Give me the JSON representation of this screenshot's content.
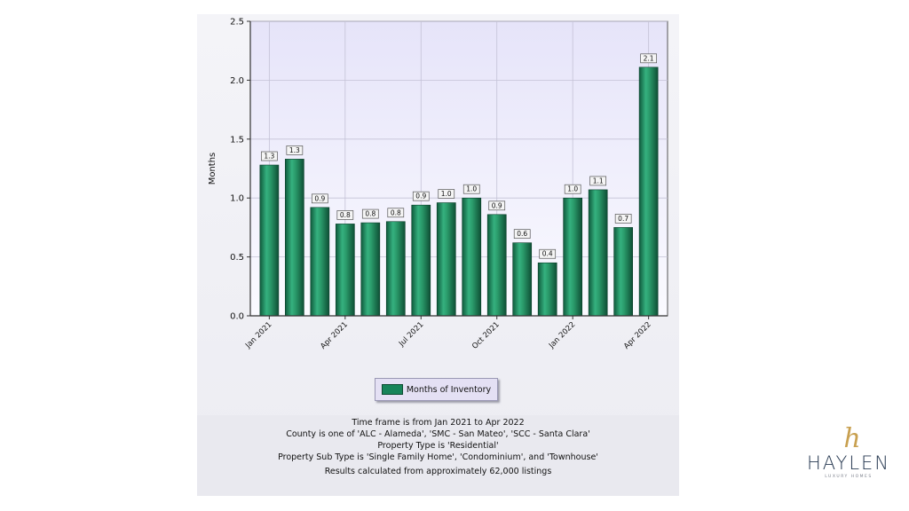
{
  "chart_data": {
    "type": "bar",
    "ylabel": "Months",
    "ylim": [
      0,
      2.5
    ],
    "yticks": [
      "0.0",
      "0.5",
      "1.0",
      "1.5",
      "2.0",
      "2.5"
    ],
    "grid": true,
    "x_tick_labels": [
      "Jan 2021",
      "Apr 2021",
      "Jul 2021",
      "Oct 2021",
      "Jan 2022",
      "Apr 2022"
    ],
    "legend_position": "bottom",
    "categories": [
      "Jan 2021",
      "Feb 2021",
      "Mar 2021",
      "Apr 2021",
      "May 2021",
      "Jun 2021",
      "Jul 2021",
      "Aug 2021",
      "Sep 2021",
      "Oct 2021",
      "Nov 2021",
      "Dec 2021",
      "Jan 2022",
      "Feb 2022",
      "Mar 2022",
      "Apr 2022"
    ],
    "series": [
      {
        "name": "Months of Inventory",
        "color": "#17845a",
        "values": [
          1.28,
          1.33,
          0.92,
          0.78,
          0.79,
          0.8,
          0.94,
          0.96,
          1.0,
          0.86,
          0.62,
          0.45,
          1.0,
          1.07,
          0.75,
          2.11
        ],
        "labels": [
          "1.3",
          "1.3",
          "0.9",
          "0.8",
          "0.8",
          "0.8",
          "0.9",
          "1.0",
          "1.0",
          "0.9",
          "0.6",
          "0.4",
          "1.0",
          "1.1",
          "0.7",
          "2.1"
        ]
      }
    ]
  },
  "notes": {
    "line1": "Time frame is from Jan 2021 to Apr 2022",
    "line2": "County is one of 'ALC - Alameda', 'SMC - San Mateo', 'SCC - Santa Clara'",
    "line3": "Property Type is 'Residential'",
    "line4": "Property Sub Type is 'Single Family Home', 'Condominium', and 'Townhouse'",
    "line5": "Results calculated from approximately 62,000 listings"
  },
  "logo": {
    "mark": "h",
    "name": "HAYLEN",
    "tagline": "LUXURY HOMES"
  }
}
